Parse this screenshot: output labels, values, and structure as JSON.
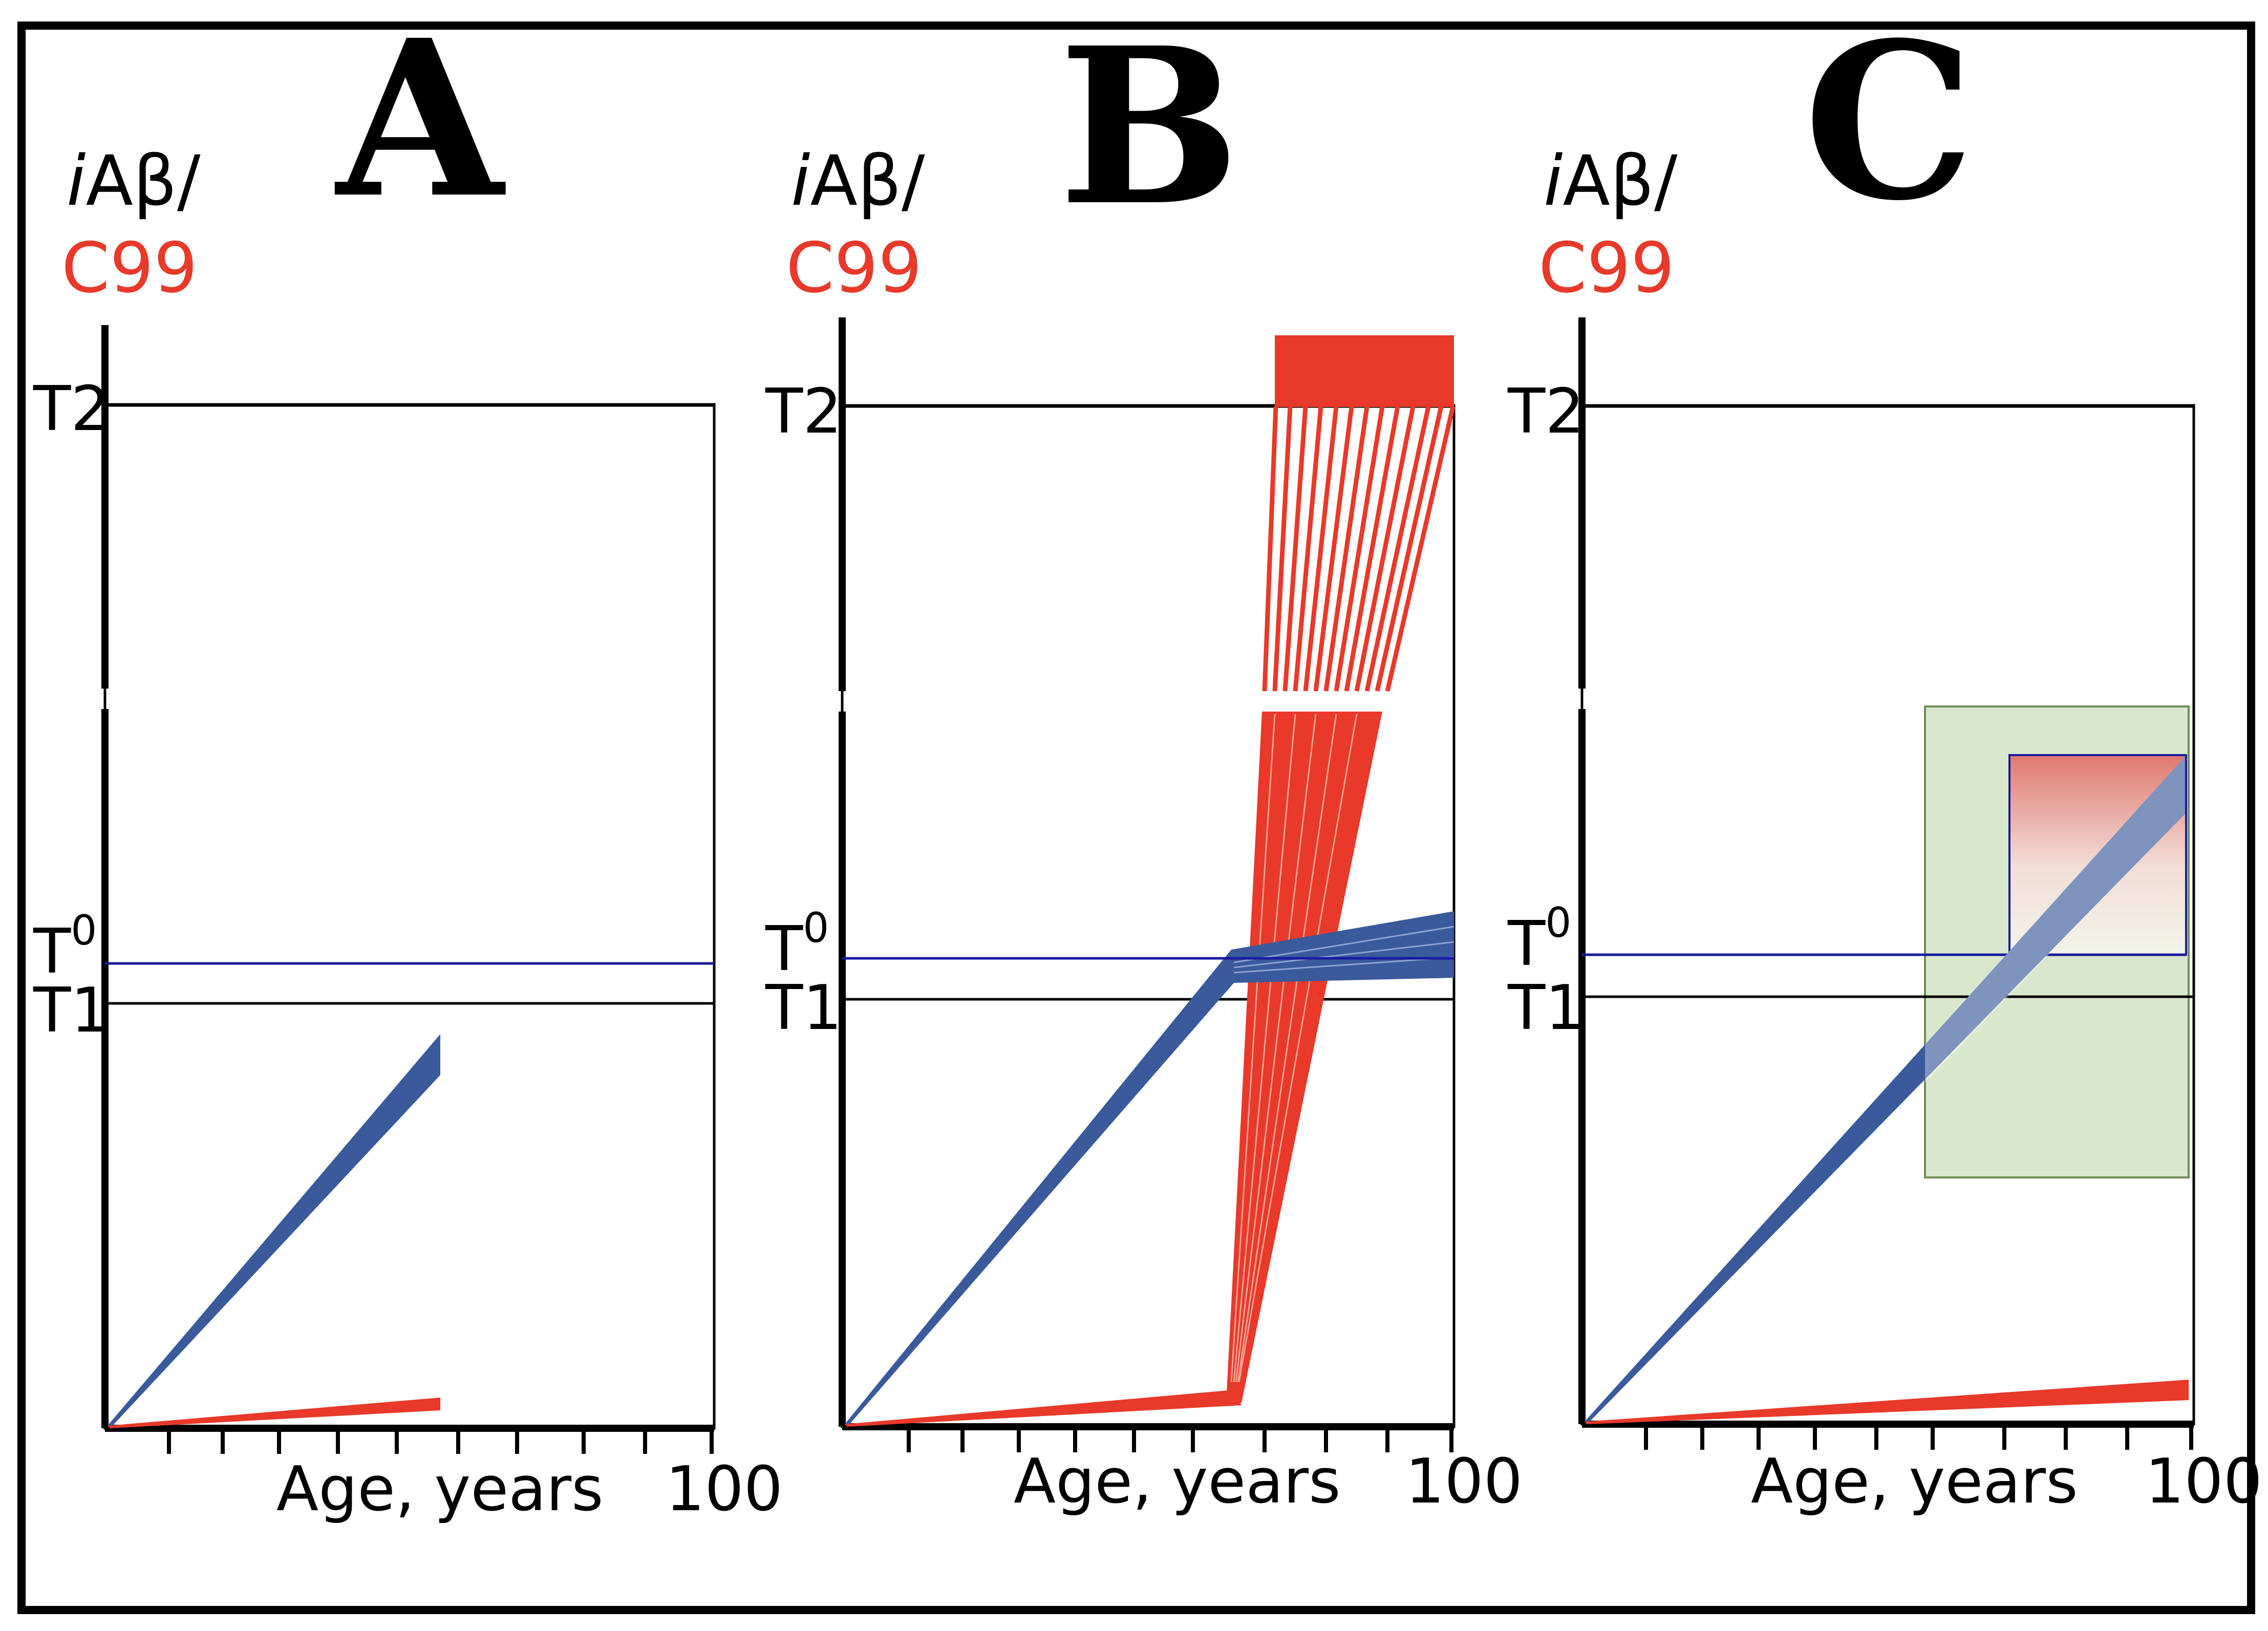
{
  "figure": {
    "frame_color": "#000000",
    "background": "#ffffff"
  },
  "colors": {
    "iab": "#3a5a9c",
    "c99": "#e8392a",
    "t0_line": "#1a1aa0",
    "threshold_line": "#000000",
    "green_box": "#d9e8cc",
    "green_box_border": "#6f8f55"
  },
  "axis_text": {
    "ylabel_part1_italic": "i",
    "ylabel_part1_rest": "Aβ/",
    "ylabel_part2": "C99",
    "t2": "T2",
    "t0_base": "T",
    "t0_sup": "0",
    "t1": "T1",
    "xlabel": "Age, years",
    "x_end_tick": "100"
  },
  "panels": [
    {
      "id": "A",
      "letter": "A",
      "description_values": {
        "x_max_years": 100,
        "iab_end_age": 55,
        "c99_end_age": 55,
        "c99_surge": false,
        "green_box": false
      }
    },
    {
      "id": "B",
      "letter": "B",
      "description_values": {
        "x_max_years": 100,
        "iab_end_age": 100,
        "c99_surge_start_age": 65,
        "c99_surge": true,
        "green_box": false
      }
    },
    {
      "id": "C",
      "letter": "C",
      "description_values": {
        "x_max_years": 100,
        "iab_end_age": 100,
        "c99_end_age": 100,
        "c99_surge": false,
        "green_box": true
      }
    }
  ]
}
